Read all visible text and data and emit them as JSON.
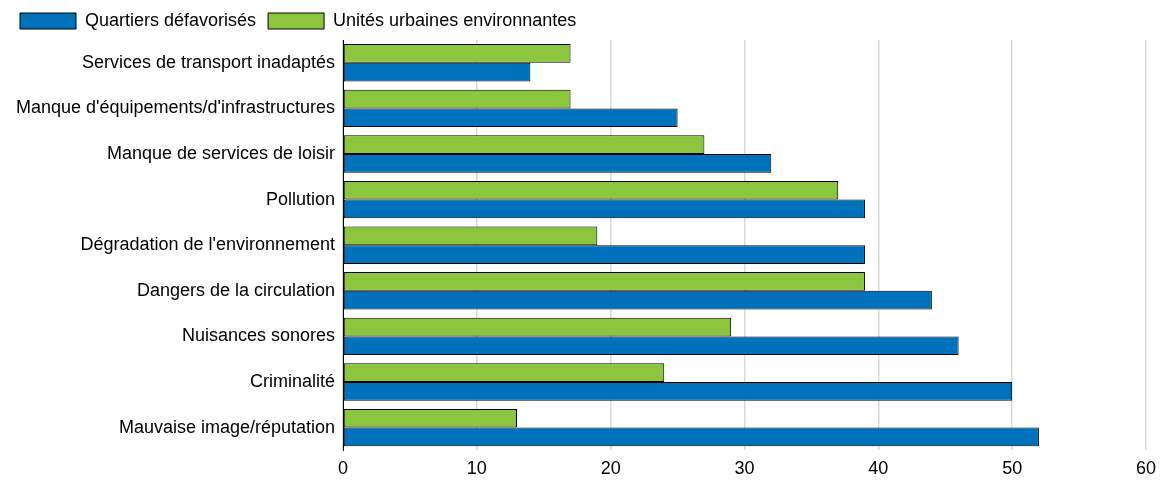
{
  "chart_data": {
    "type": "bar",
    "orientation": "horizontal",
    "categories": [
      "Services de transport inadaptés",
      "Manque d'équipements/d'infrastructures",
      "Manque de services de loisir",
      "Pollution",
      "Dégradation de l'environnement",
      "Dangers de la circulation",
      "Nuisances sonores",
      "Criminalité",
      "Mauvaise image/réputation"
    ],
    "series": [
      {
        "name": "Quartiers défavorisés",
        "color": "#0072bc",
        "values": [
          14,
          25,
          32,
          39,
          39,
          44,
          46,
          50,
          52
        ]
      },
      {
        "name": "Unités urbaines environnantes",
        "color": "#8cc63f",
        "values": [
          17,
          17,
          27,
          37,
          19,
          39,
          29,
          24,
          13
        ]
      }
    ],
    "xlim": [
      0,
      60
    ],
    "xticks": [
      0,
      10,
      20,
      30,
      40,
      50,
      60
    ],
    "grid": "x",
    "legend": "top left"
  }
}
